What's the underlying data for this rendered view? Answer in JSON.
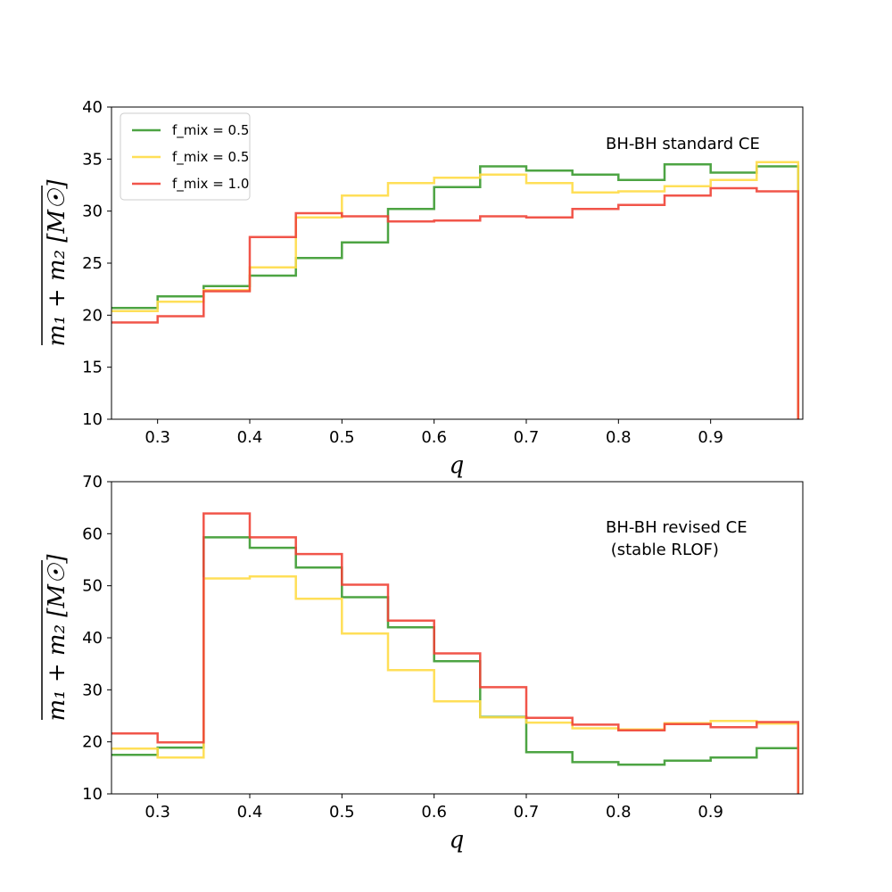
{
  "chart_data": [
    {
      "type": "line",
      "drawstyle": "steps",
      "title": "",
      "annotation": "BH-BH standard CE",
      "xlabel": "q",
      "ylabel": "m₁ + m₂ [M☉]",
      "xlim": [
        0.25,
        1.0
      ],
      "ylim": [
        10,
        40
      ],
      "xticks": [
        "0.3",
        "0.4",
        "0.5",
        "0.6",
        "0.7",
        "0.8",
        "0.9"
      ],
      "yticks": [
        "10",
        "15",
        "20",
        "25",
        "30",
        "35",
        "40"
      ],
      "bin_edges": [
        0.25,
        0.3,
        0.35,
        0.4,
        0.45,
        0.5,
        0.55,
        0.6,
        0.65,
        0.7,
        0.75,
        0.8,
        0.85,
        0.9,
        0.95,
        0.995
      ],
      "legend": {
        "position": "upper-left",
        "entries": [
          "f_mix = 0.5",
          "f_mix = 0.5",
          "f_mix = 1.0"
        ]
      },
      "series": [
        {
          "name": "f_mix = 0.5",
          "color": "#3a9a2f",
          "values": [
            20.7,
            21.8,
            22.8,
            23.8,
            25.5,
            27.0,
            30.2,
            32.3,
            34.3,
            33.9,
            33.5,
            33.0,
            34.5,
            33.7,
            34.3
          ]
        },
        {
          "name": "f_mix = 0.5",
          "color": "#ffdc46",
          "values": [
            20.4,
            21.3,
            22.4,
            24.6,
            29.4,
            31.5,
            32.7,
            33.2,
            33.5,
            32.7,
            31.8,
            31.9,
            32.4,
            33.0,
            34.7
          ]
        },
        {
          "name": "f_mix = 1.0",
          "color": "#f04336",
          "values": [
            19.3,
            19.9,
            22.3,
            27.5,
            29.8,
            29.5,
            29.0,
            29.1,
            29.5,
            29.4,
            30.2,
            30.6,
            31.5,
            32.2,
            31.9
          ]
        }
      ]
    },
    {
      "type": "line",
      "drawstyle": "steps",
      "title": "",
      "annotation_lines": [
        "BH-BH revised CE",
        " (stable RLOF)"
      ],
      "xlabel": "q",
      "ylabel": "m₁ + m₂ [M☉]",
      "xlim": [
        0.25,
        1.0
      ],
      "ylim": [
        10,
        70
      ],
      "xticks": [
        "0.3",
        "0.4",
        "0.5",
        "0.6",
        "0.7",
        "0.8",
        "0.9"
      ],
      "yticks": [
        "10",
        "20",
        "30",
        "40",
        "50",
        "60",
        "70"
      ],
      "bin_edges": [
        0.25,
        0.3,
        0.35,
        0.4,
        0.45,
        0.5,
        0.55,
        0.6,
        0.65,
        0.7,
        0.75,
        0.8,
        0.85,
        0.9,
        0.95,
        0.995
      ],
      "series": [
        {
          "name": "f_mix = 0.5",
          "color": "#3a9a2f",
          "values": [
            17.5,
            18.9,
            59.3,
            57.3,
            53.5,
            47.8,
            42.0,
            35.5,
            24.8,
            18.0,
            16.1,
            15.6,
            16.4,
            17.0,
            18.8
          ]
        },
        {
          "name": "f_mix = 0.5",
          "color": "#ffdc46",
          "values": [
            18.7,
            17.0,
            51.4,
            51.8,
            47.5,
            40.8,
            33.8,
            27.8,
            24.7,
            23.7,
            22.6,
            22.4,
            23.6,
            24.0,
            23.5
          ]
        },
        {
          "name": "f_mix = 1.0",
          "color": "#f04336",
          "values": [
            21.6,
            19.9,
            63.9,
            59.3,
            56.1,
            50.2,
            43.3,
            37.0,
            30.5,
            24.6,
            23.3,
            22.2,
            23.4,
            22.8,
            23.8
          ]
        }
      ]
    }
  ]
}
